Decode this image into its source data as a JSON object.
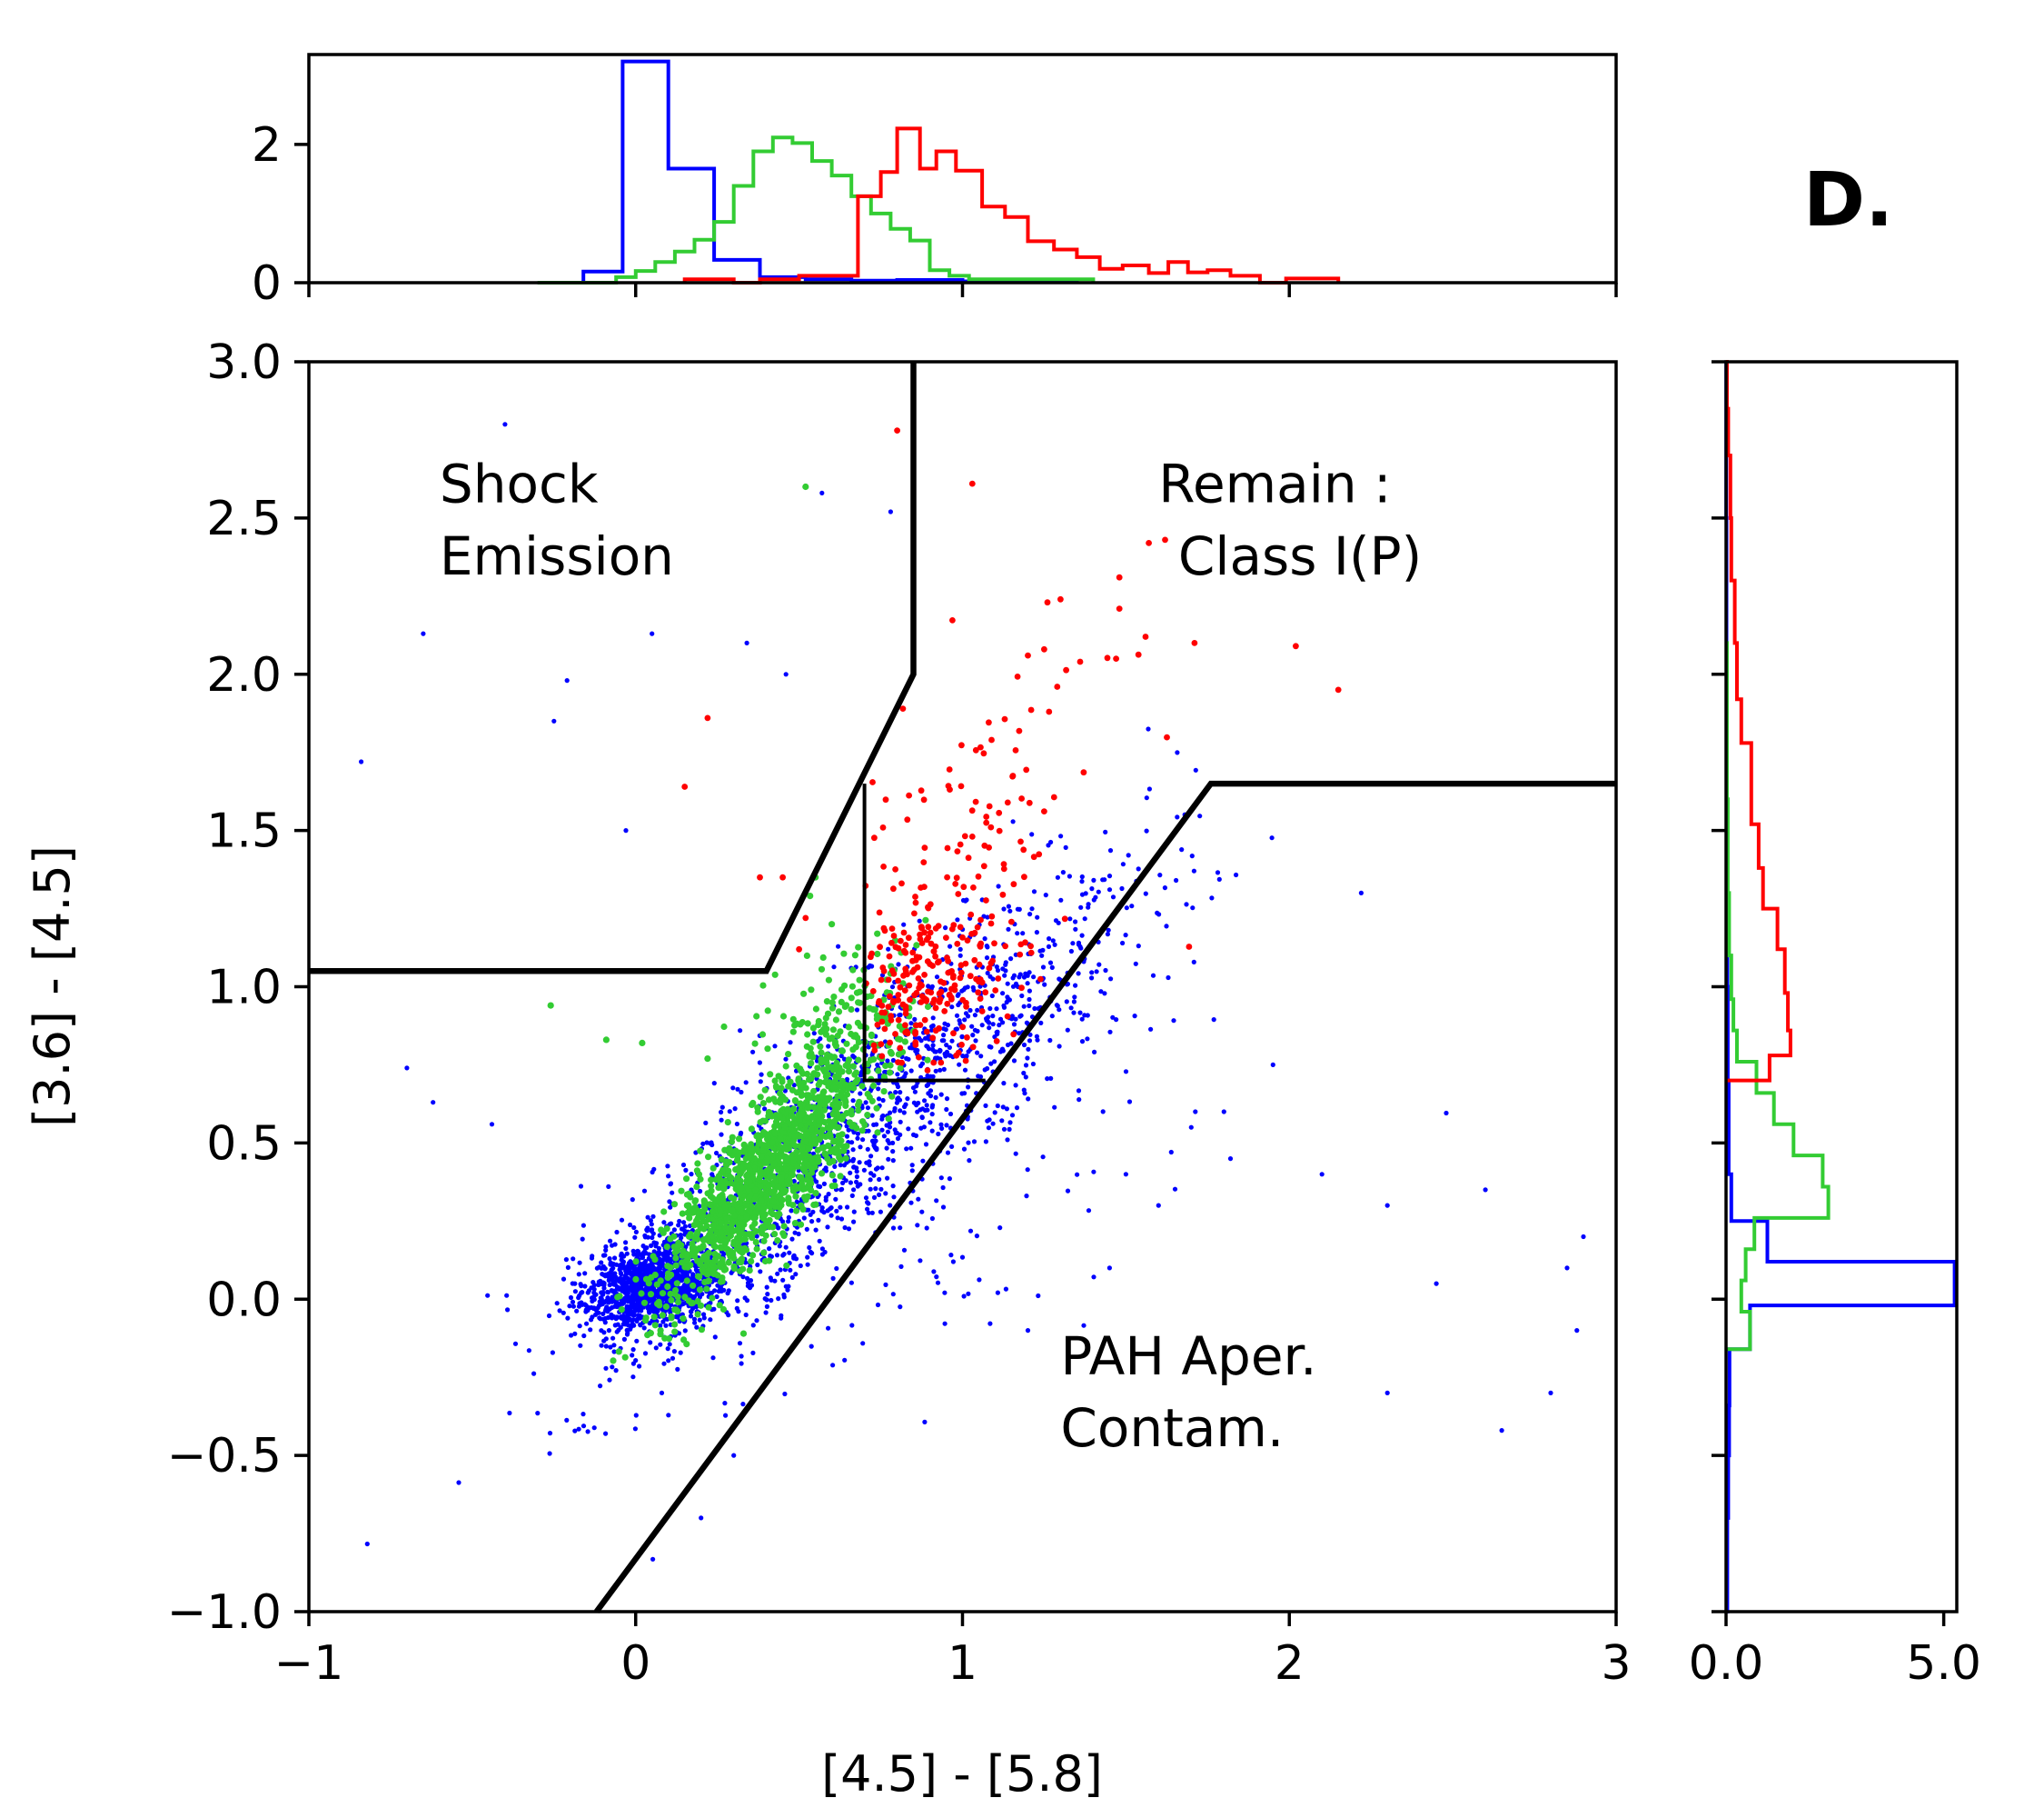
{
  "panel_label": "D.",
  "colors": {
    "blue": "#0000ff",
    "green": "#33cc33",
    "red": "#ff0000",
    "line": "#000000"
  },
  "chart_data": [
    {
      "type": "scatter",
      "name": "main-scatter",
      "xlabel": "[4.5] - [5.8]",
      "ylabel": "[3.6] - [4.5]",
      "xlim": [
        -1,
        3
      ],
      "ylim": [
        -1,
        3
      ],
      "xticks": [
        -1,
        0,
        1,
        2,
        3
      ],
      "xtick_labels": [
        "−1",
        "0",
        "1",
        "2",
        "3"
      ],
      "yticks": [
        -1,
        -0.5,
        0,
        0.5,
        1,
        1.5,
        2,
        2.5,
        3
      ],
      "ytick_labels": [
        "−1.0",
        "−0.5",
        "0.0",
        "0.5",
        "1.0",
        "1.5",
        "2.0",
        "2.5",
        "3.0"
      ],
      "region_labels": [
        {
          "text": "Shock",
          "x": -0.6,
          "y": 2.55
        },
        {
          "text": "Emission",
          "x": -0.6,
          "y": 2.32
        },
        {
          "text": "Remain :",
          "x": 1.6,
          "y": 2.55
        },
        {
          "text": "Class I(P)",
          "x": 1.66,
          "y": 2.32
        },
        {
          "text": "PAH Aper.",
          "x": 1.3,
          "y": -0.24
        },
        {
          "text": "Contam.",
          "x": 1.3,
          "y": -0.47
        }
      ],
      "boundaries": [
        {
          "name": "shock-boundary",
          "points": [
            [
              -1,
              1.05
            ],
            [
              0.4,
              1.05
            ],
            [
              0.85,
              2.0
            ],
            [
              0.85,
              3.0
            ]
          ]
        },
        {
          "name": "pah-boundary",
          "points": [
            [
              -0.12,
              -1.0
            ],
            [
              1.76,
              1.65
            ],
            [
              3.0,
              1.65
            ]
          ]
        },
        {
          "name": "classI-boundary",
          "points": [
            [
              0.7,
              1.65
            ],
            [
              0.7,
              0.7
            ],
            [
              1.07,
              0.7
            ]
          ]
        }
      ],
      "series": [
        {
          "name": "blue",
          "color": "#0000ff",
          "clusters": [
            {
              "cx": 0.05,
              "cy": 0.05,
              "sx": 0.1,
              "sy": 0.07,
              "rho": 0.3,
              "n": 1200
            },
            {
              "cx": 0.42,
              "cy": 0.35,
              "sx": 0.3,
              "sy": 0.3,
              "rho": 0.78,
              "n": 900
            },
            {
              "cx": 1.0,
              "cy": 0.85,
              "sx": 0.3,
              "sy": 0.3,
              "rho": 0.75,
              "n": 650
            },
            {
              "cx": 0.8,
              "cy": 0.35,
              "sx": 0.45,
              "sy": 0.35,
              "rho": 0.5,
              "n": 160
            }
          ],
          "points": [
            [
              -0.4,
              2.8
            ],
            [
              0.57,
              2.58
            ],
            [
              0.05,
              2.13
            ],
            [
              -0.65,
              2.13
            ],
            [
              -0.84,
              1.72
            ],
            [
              -0.25,
              1.85
            ],
            [
              -0.21,
              1.98
            ],
            [
              -0.03,
              1.5
            ],
            [
              0.34,
              2.1
            ],
            [
              0.46,
              2.0
            ],
            [
              0.78,
              2.52
            ],
            [
              -0.7,
              0.74
            ],
            [
              -0.62,
              0.63
            ],
            [
              -0.44,
              0.56
            ],
            [
              0.3,
              -0.5
            ],
            [
              0.2,
              -0.7
            ],
            [
              0.08,
              -0.3
            ],
            [
              1.9,
              -0.18
            ],
            [
              2.3,
              -0.3
            ],
            [
              2.65,
              -0.42
            ],
            [
              2.88,
              -0.1
            ],
            [
              1.5,
              0.4
            ],
            [
              1.8,
              0.6
            ],
            [
              2.1,
              0.4
            ],
            [
              2.3,
              0.3
            ],
            [
              2.22,
              1.3
            ],
            [
              1.95,
              0.75
            ],
            [
              2.85,
              0.1
            ],
            [
              2.8,
              -0.3
            ],
            [
              2.9,
              0.2
            ],
            [
              1.2,
              -0.1
            ],
            [
              1.45,
              0.1
            ],
            [
              1.6,
              0.3
            ],
            [
              1.7,
              0.55
            ],
            [
              1.82,
              0.45
            ],
            [
              2.6,
              0.35
            ],
            [
              2.45,
              0.05
            ]
          ]
        },
        {
          "name": "green",
          "color": "#33cc33",
          "clusters": [
            {
              "cx": 0.4,
              "cy": 0.4,
              "sx": 0.16,
              "sy": 0.2,
              "rho": 0.85,
              "n": 1400
            },
            {
              "cx": 0.62,
              "cy": 0.9,
              "sx": 0.13,
              "sy": 0.15,
              "rho": 0.4,
              "n": 140
            }
          ],
          "points": [
            [
              0.52,
              2.6
            ],
            [
              -0.26,
              0.94
            ],
            [
              -0.09,
              0.83
            ],
            [
              0.02,
              0.82
            ],
            [
              0.22,
              0.77
            ],
            [
              0.33,
              -0.11
            ],
            [
              0.55,
              1.35
            ],
            [
              0.6,
              1.2
            ]
          ]
        },
        {
          "name": "red",
          "color": "#ff0000",
          "clusters": [
            {
              "cx": 0.9,
              "cy": 1.0,
              "sx": 0.12,
              "sy": 0.14,
              "rho": 0.3,
              "n": 220
            },
            {
              "cx": 1.0,
              "cy": 1.45,
              "sx": 0.22,
              "sy": 0.28,
              "rho": 0.4,
              "n": 110
            }
          ],
          "points": [
            [
              0.8,
              2.78
            ],
            [
              1.03,
              2.61
            ],
            [
              1.62,
              2.43
            ],
            [
              1.57,
              2.42
            ],
            [
              1.48,
              2.31
            ],
            [
              1.48,
              2.21
            ],
            [
              1.3,
              2.24
            ],
            [
              1.26,
              2.23
            ],
            [
              1.56,
              2.12
            ],
            [
              1.71,
              2.1
            ],
            [
              2.02,
              2.09
            ],
            [
              2.15,
              1.95
            ],
            [
              1.47,
              2.05
            ],
            [
              1.36,
              2.04
            ],
            [
              1.25,
              2.08
            ],
            [
              1.2,
              2.06
            ],
            [
              1.29,
              1.96
            ],
            [
              0.22,
              1.86
            ],
            [
              0.15,
              1.64
            ],
            [
              0.45,
              1.35
            ],
            [
              0.38,
              1.35
            ],
            [
              0.52,
              1.22
            ],
            [
              0.5,
              1.12
            ]
          ]
        }
      ]
    },
    {
      "type": "line",
      "name": "top-histogram",
      "xlim": [
        -1,
        3
      ],
      "ylim": [
        0,
        3.3
      ],
      "yticks": [
        0,
        2
      ],
      "ytick_labels": [
        "0",
        "2"
      ],
      "series": [
        {
          "name": "blue",
          "color": "#0000ff",
          "steps": [
            [
              -0.3,
              0.0
            ],
            [
              -0.16,
              0.16
            ],
            [
              -0.04,
              3.2
            ],
            [
              0.1,
              1.65
            ],
            [
              0.24,
              0.33
            ],
            [
              0.38,
              0.08
            ],
            [
              0.52,
              0.05
            ],
            [
              0.66,
              0.03
            ],
            [
              0.8,
              0.04
            ],
            [
              1.0,
              0.02
            ],
            [
              1.35,
              0.0
            ]
          ]
        },
        {
          "name": "green",
          "color": "#33cc33",
          "steps": [
            [
              -0.3,
              0.0
            ],
            [
              -0.06,
              0.08
            ],
            [
              0.0,
              0.17
            ],
            [
              0.06,
              0.3
            ],
            [
              0.12,
              0.45
            ],
            [
              0.18,
              0.62
            ],
            [
              0.24,
              0.88
            ],
            [
              0.3,
              1.4
            ],
            [
              0.36,
              1.9
            ],
            [
              0.42,
              2.1
            ],
            [
              0.48,
              2.02
            ],
            [
              0.54,
              1.76
            ],
            [
              0.6,
              1.55
            ],
            [
              0.66,
              1.25
            ],
            [
              0.72,
              1.0
            ],
            [
              0.78,
              0.78
            ],
            [
              0.84,
              0.61
            ],
            [
              0.9,
              0.18
            ],
            [
              0.96,
              0.1
            ],
            [
              1.02,
              0.05
            ],
            [
              1.4,
              0.0
            ]
          ]
        },
        {
          "name": "red",
          "color": "#ff0000",
          "steps": [
            [
              0.15,
              0.05
            ],
            [
              0.3,
              0.0
            ],
            [
              0.38,
              0.05
            ],
            [
              0.5,
              0.1
            ],
            [
              0.68,
              1.25
            ],
            [
              0.75,
              1.6
            ],
            [
              0.8,
              2.23
            ],
            [
              0.87,
              1.65
            ],
            [
              0.92,
              1.9
            ],
            [
              0.98,
              1.62
            ],
            [
              1.06,
              1.1
            ],
            [
              1.13,
              0.95
            ],
            [
              1.2,
              0.6
            ],
            [
              1.28,
              0.48
            ],
            [
              1.35,
              0.37
            ],
            [
              1.42,
              0.2
            ],
            [
              1.49,
              0.25
            ],
            [
              1.57,
              0.14
            ],
            [
              1.63,
              0.3
            ],
            [
              1.69,
              0.15
            ],
            [
              1.75,
              0.18
            ],
            [
              1.82,
              0.1
            ],
            [
              1.91,
              0.0
            ],
            [
              1.99,
              0.06
            ],
            [
              2.15,
              0.0
            ]
          ]
        }
      ]
    },
    {
      "type": "line",
      "name": "right-histogram",
      "ylim": [
        -1,
        3
      ],
      "xlim": [
        0,
        5.3
      ],
      "xticks": [
        0,
        5
      ],
      "xtick_labels": [
        "0.0",
        "5.0"
      ],
      "series": [
        {
          "name": "blue",
          "color": "#0000ff",
          "steps": [
            [
              -1.0,
              0.03
            ],
            [
              -0.7,
              0.05
            ],
            [
              -0.5,
              0.07
            ],
            [
              -0.34,
              0.08
            ],
            [
              -0.16,
              0.55
            ],
            [
              -0.02,
              5.25
            ],
            [
              0.12,
              0.95
            ],
            [
              0.25,
              0.12
            ],
            [
              0.4,
              0.06
            ],
            [
              0.7,
              0.04
            ],
            [
              1.0,
              0.03
            ],
            [
              1.5,
              0.02
            ],
            [
              2.0,
              0.01
            ],
            [
              2.5,
              0.005
            ],
            [
              3.0,
              0.0
            ]
          ]
        },
        {
          "name": "green",
          "color": "#33cc33",
          "steps": [
            [
              -0.16,
              0.55
            ],
            [
              -0.04,
              0.35
            ],
            [
              0.06,
              0.45
            ],
            [
              0.16,
              0.65
            ],
            [
              0.26,
              2.35
            ],
            [
              0.36,
              2.22
            ],
            [
              0.46,
              1.55
            ],
            [
              0.56,
              1.1
            ],
            [
              0.66,
              0.7
            ],
            [
              0.76,
              0.25
            ],
            [
              0.86,
              0.17
            ],
            [
              0.96,
              0.12
            ],
            [
              1.1,
              0.07
            ],
            [
              1.3,
              0.04
            ],
            [
              1.6,
              0.02
            ],
            [
              2.1,
              0.0
            ]
          ]
        },
        {
          "name": "red",
          "color": "#ff0000",
          "steps": [
            [
              0.7,
              1.0
            ],
            [
              0.78,
              1.48
            ],
            [
              0.86,
              1.42
            ],
            [
              0.98,
              1.35
            ],
            [
              1.12,
              1.18
            ],
            [
              1.25,
              0.85
            ],
            [
              1.38,
              0.75
            ],
            [
              1.52,
              0.58
            ],
            [
              1.66,
              0.58
            ],
            [
              1.78,
              0.35
            ],
            [
              1.92,
              0.25
            ],
            [
              2.1,
              0.2
            ],
            [
              2.3,
              0.12
            ],
            [
              2.5,
              0.1
            ],
            [
              2.7,
              0.05
            ],
            [
              2.85,
              0.02
            ],
            [
              3.0,
              0.0
            ]
          ]
        }
      ]
    }
  ]
}
